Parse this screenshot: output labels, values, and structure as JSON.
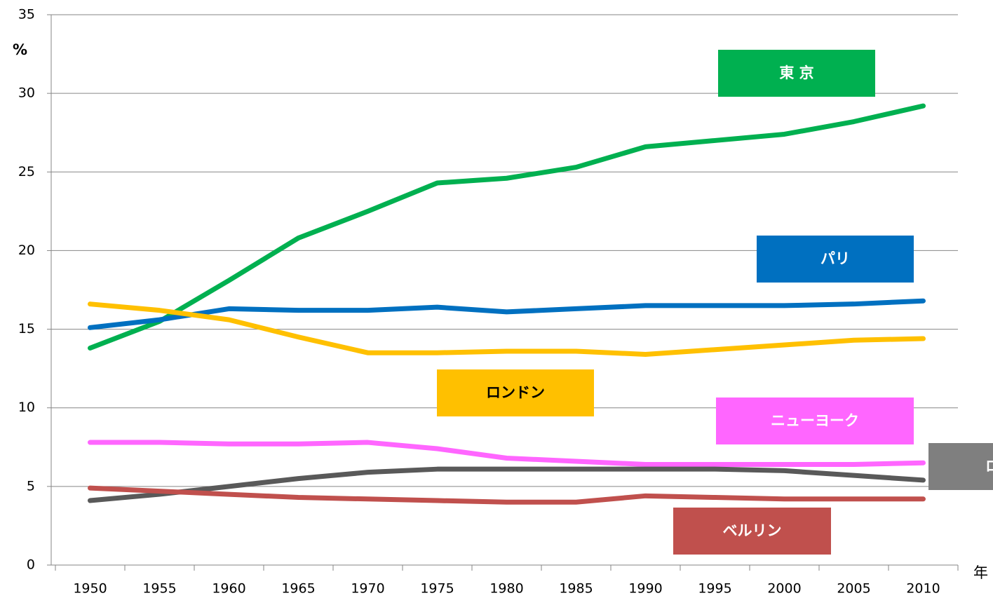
{
  "chart_data": {
    "type": "line",
    "y_label": "%",
    "x_label": "年",
    "categories": [
      "1950",
      "1955",
      "1960",
      "1965",
      "1970",
      "1975",
      "1980",
      "1985",
      "1990",
      "1995",
      "2000",
      "2005",
      "2010"
    ],
    "series": [
      {
        "name": "東 京",
        "color": "#00b050",
        "values": [
          13.8,
          15.5,
          18.1,
          20.8,
          22.5,
          24.3,
          24.6,
          25.3,
          26.6,
          27.0,
          27.4,
          28.2,
          29.2
        ]
      },
      {
        "name": "パリ",
        "color": "#0070c0",
        "values": [
          15.1,
          15.6,
          16.3,
          16.2,
          16.2,
          16.4,
          16.1,
          16.3,
          16.5,
          16.5,
          16.5,
          16.6,
          16.8
        ]
      },
      {
        "name": "ロンドン",
        "color": "#ffc000",
        "values": [
          16.6,
          16.2,
          15.6,
          14.5,
          13.5,
          13.5,
          13.6,
          13.6,
          13.4,
          13.7,
          14.0,
          14.3,
          14.4
        ]
      },
      {
        "name": "ニューヨーク",
        "color": "#ff66ff",
        "values": [
          7.8,
          7.8,
          7.7,
          7.7,
          7.8,
          7.4,
          6.8,
          6.6,
          6.4,
          6.4,
          6.4,
          6.4,
          6.5
        ]
      },
      {
        "name": "ロ",
        "color": "#595959",
        "values": [
          4.1,
          4.5,
          5.0,
          5.5,
          5.9,
          6.1,
          6.1,
          6.1,
          6.1,
          6.1,
          6.0,
          5.7,
          5.4
        ]
      },
      {
        "name": "ベルリン",
        "color": "#c0504d",
        "values": [
          4.9,
          4.7,
          4.5,
          4.3,
          4.2,
          4.1,
          4.0,
          4.0,
          4.4,
          4.3,
          4.2,
          4.2,
          4.2
        ]
      }
    ],
    "ylim": [
      0,
      35
    ],
    "yticks": [
      0,
      5,
      10,
      15,
      20,
      25,
      30,
      35
    ],
    "grid": true
  }
}
